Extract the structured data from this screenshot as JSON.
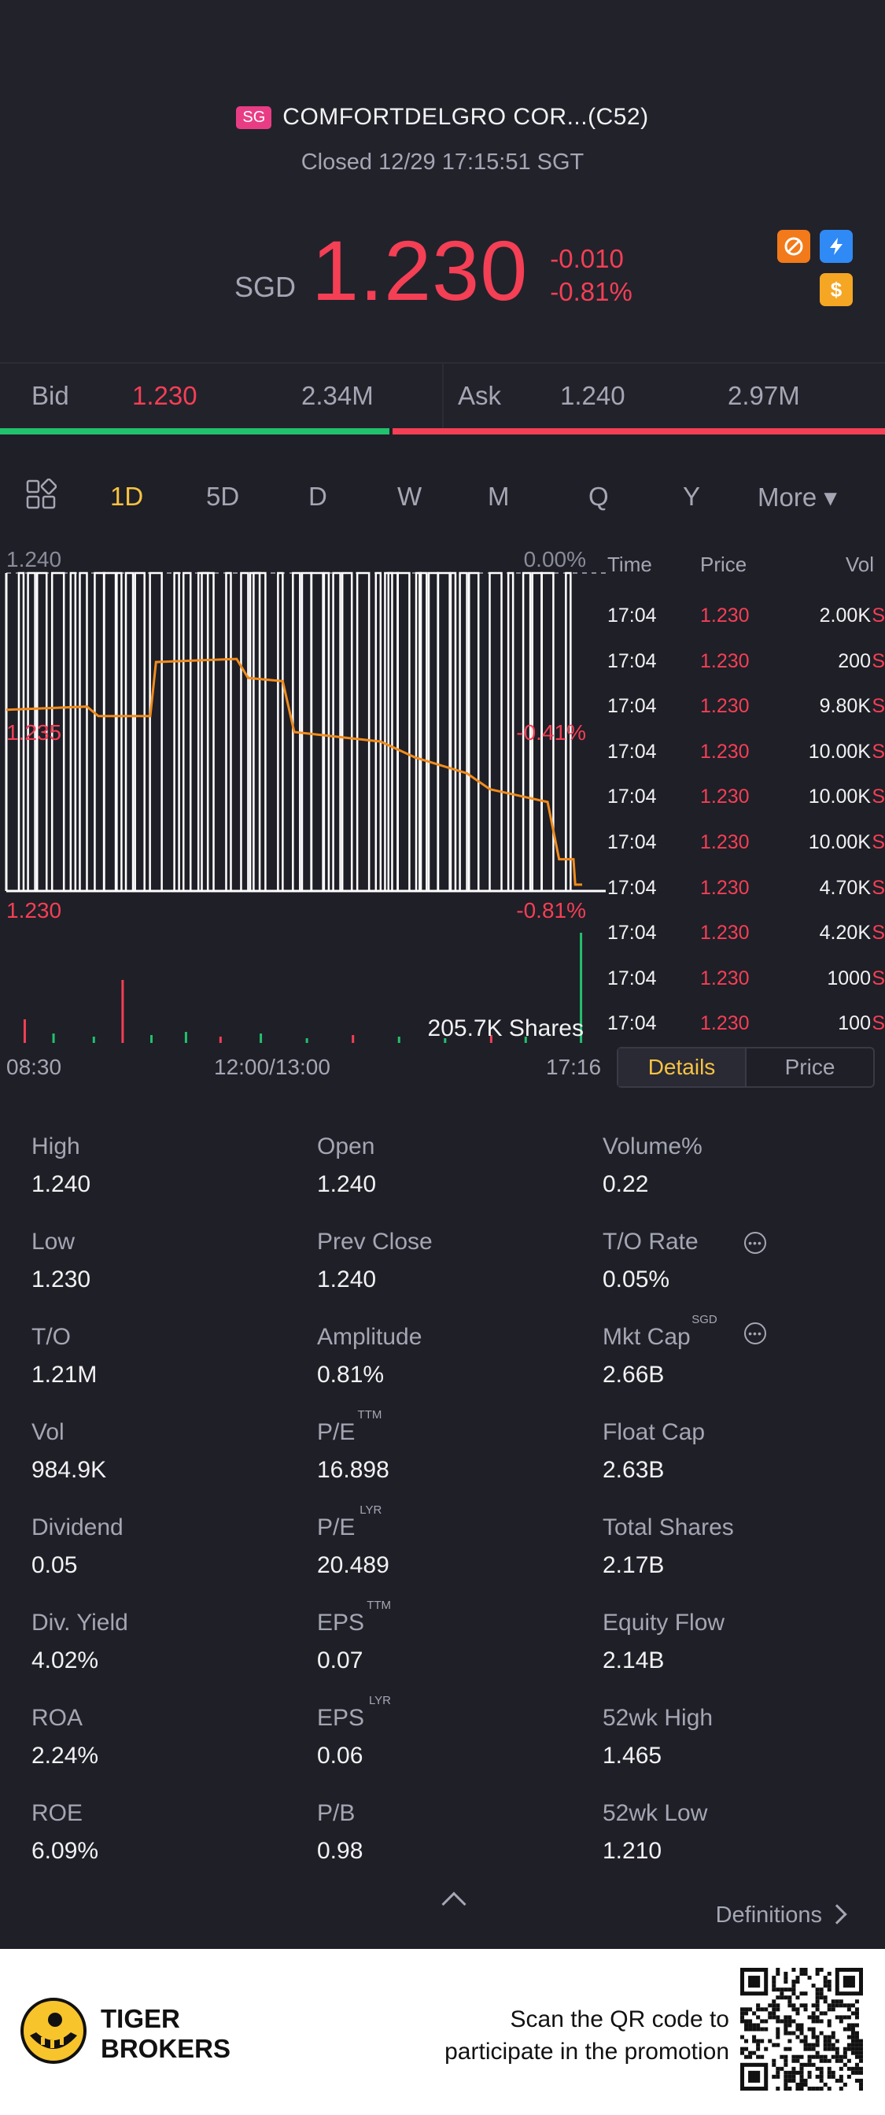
{
  "header": {
    "market_badge": "SG",
    "title": "COMFORTDELGRO COR...(C52)",
    "status": "Closed 12/29 17:15:51 SGT",
    "currency": "SGD",
    "price": "1.230",
    "change": "-0.010",
    "change_pct": "-0.81%",
    "colors": {
      "down": "#f43f55",
      "up": "#22c16d",
      "accent": "#f6c343"
    },
    "icons": [
      "no-short-icon",
      "lightning-icon",
      "dollar-icon"
    ]
  },
  "quote": {
    "bid_label": "Bid",
    "bid_price": "1.230",
    "bid_size": "2.34M",
    "ask_label": "Ask",
    "ask_price": "1.240",
    "ask_size": "2.97M",
    "bid_ratio": 0.44
  },
  "tabs": [
    "1D",
    "5D",
    "D",
    "W",
    "M",
    "Q",
    "Y",
    "More ▾"
  ],
  "active_tab": "1D",
  "chart_data": {
    "type": "line",
    "y_labels": {
      "top": "1.240",
      "mid": "1.235",
      "bottom": "1.230"
    },
    "pct_labels": {
      "top": "0.00%",
      "mid": "-0.41%",
      "bottom": "-0.81%"
    },
    "ylim": [
      1.23,
      1.24
    ],
    "x_labels": [
      "08:30",
      "12:00/13:00",
      "17:16"
    ],
    "volume_label": "205.7K Shares",
    "price_series": [
      {
        "t": 0.0,
        "y": 1.2357
      },
      {
        "t": 0.14,
        "y": 1.2358
      },
      {
        "t": 0.16,
        "y": 1.2355
      },
      {
        "t": 0.25,
        "y": 1.2355
      },
      {
        "t": 0.26,
        "y": 1.2372
      },
      {
        "t": 0.4,
        "y": 1.2373
      },
      {
        "t": 0.42,
        "y": 1.2367
      },
      {
        "t": 0.48,
        "y": 1.2366
      },
      {
        "t": 0.5,
        "y": 1.235
      },
      {
        "t": 0.65,
        "y": 1.2347
      },
      {
        "t": 0.71,
        "y": 1.2342
      },
      {
        "t": 0.8,
        "y": 1.2337
      },
      {
        "t": 0.84,
        "y": 1.2332
      },
      {
        "t": 0.94,
        "y": 1.2328
      },
      {
        "t": 0.96,
        "y": 1.231
      },
      {
        "t": 0.985,
        "y": 1.231
      },
      {
        "t": 0.988,
        "y": 1.2302
      },
      {
        "t": 1.0,
        "y": 1.2302
      }
    ],
    "tick_spikes": [
      0.03,
      0.05,
      0.07,
      0.1,
      0.12,
      0.14,
      0.17,
      0.19,
      0.2,
      0.22,
      0.24,
      0.27,
      0.3,
      0.32,
      0.35,
      0.36,
      0.39,
      0.42,
      0.44,
      0.45,
      0.48,
      0.51,
      0.53,
      0.55,
      0.56,
      0.58,
      0.6,
      0.63,
      0.65,
      0.67,
      0.68,
      0.7,
      0.72,
      0.73,
      0.75,
      0.77,
      0.78,
      0.8,
      0.82,
      0.86,
      0.88,
      0.91,
      0.93,
      0.95,
      0.98
    ]
  },
  "ticks": {
    "headers": {
      "time": "Time",
      "price": "Price",
      "vol": "Vol"
    },
    "rows": [
      {
        "time": "17:04",
        "price": "1.230",
        "vol": "2.00K",
        "side": "S"
      },
      {
        "time": "17:04",
        "price": "1.230",
        "vol": "200",
        "side": "S"
      },
      {
        "time": "17:04",
        "price": "1.230",
        "vol": "9.80K",
        "side": "S"
      },
      {
        "time": "17:04",
        "price": "1.230",
        "vol": "10.00K",
        "side": "S"
      },
      {
        "time": "17:04",
        "price": "1.230",
        "vol": "10.00K",
        "side": "S"
      },
      {
        "time": "17:04",
        "price": "1.230",
        "vol": "10.00K",
        "side": "S"
      },
      {
        "time": "17:04",
        "price": "1.230",
        "vol": "4.70K",
        "side": "S"
      },
      {
        "time": "17:04",
        "price": "1.230",
        "vol": "4.20K",
        "side": "S"
      },
      {
        "time": "17:04",
        "price": "1.230",
        "vol": "1000",
        "side": "S"
      },
      {
        "time": "17:04",
        "price": "1.230",
        "vol": "100",
        "side": "S"
      }
    ]
  },
  "segment": {
    "details": "Details",
    "price": "Price"
  },
  "stats": [
    {
      "label": "High",
      "value": "1.240",
      "sup": ""
    },
    {
      "label": "Open",
      "value": "1.240",
      "sup": ""
    },
    {
      "label": "Volume%",
      "value": "0.22",
      "sup": ""
    },
    {
      "label": "Low",
      "value": "1.230",
      "sup": ""
    },
    {
      "label": "Prev Close",
      "value": "1.240",
      "sup": ""
    },
    {
      "label": "T/O Rate",
      "value": "0.05%",
      "sup": ""
    },
    {
      "label": "T/O",
      "value": "1.21M",
      "sup": ""
    },
    {
      "label": "Amplitude",
      "value": "0.81%",
      "sup": ""
    },
    {
      "label": "Mkt Cap",
      "value": "2.66B",
      "sup": "SGD"
    },
    {
      "label": "Vol",
      "value": "984.9K",
      "sup": ""
    },
    {
      "label": "P/E",
      "value": "16.898",
      "sup": "TTM"
    },
    {
      "label": "Float Cap",
      "value": "2.63B",
      "sup": ""
    },
    {
      "label": "Dividend",
      "value": "0.05",
      "sup": ""
    },
    {
      "label": "P/E",
      "value": "20.489",
      "sup": "LYR"
    },
    {
      "label": "Total Shares",
      "value": "2.17B",
      "sup": ""
    },
    {
      "label": "Div. Yield",
      "value": "4.02%",
      "sup": ""
    },
    {
      "label": "EPS",
      "value": "0.07",
      "sup": "TTM"
    },
    {
      "label": "Equity Flow",
      "value": "2.14B",
      "sup": ""
    },
    {
      "label": "ROA",
      "value": "2.24%",
      "sup": ""
    },
    {
      "label": "EPS",
      "value": "0.06",
      "sup": "LYR"
    },
    {
      "label": "52wk High",
      "value": "1.465",
      "sup": ""
    },
    {
      "label": "ROE",
      "value": "6.09%",
      "sup": ""
    },
    {
      "label": "P/B",
      "value": "0.98",
      "sup": ""
    },
    {
      "label": "52wk Low",
      "value": "1.210",
      "sup": ""
    }
  ],
  "definitions_label": "Definitions",
  "footer": {
    "brand_line1": "TIGER",
    "brand_line2": "BROKERS",
    "promo_line1": "Scan the QR code to",
    "promo_line2": "participate in the promotion"
  }
}
